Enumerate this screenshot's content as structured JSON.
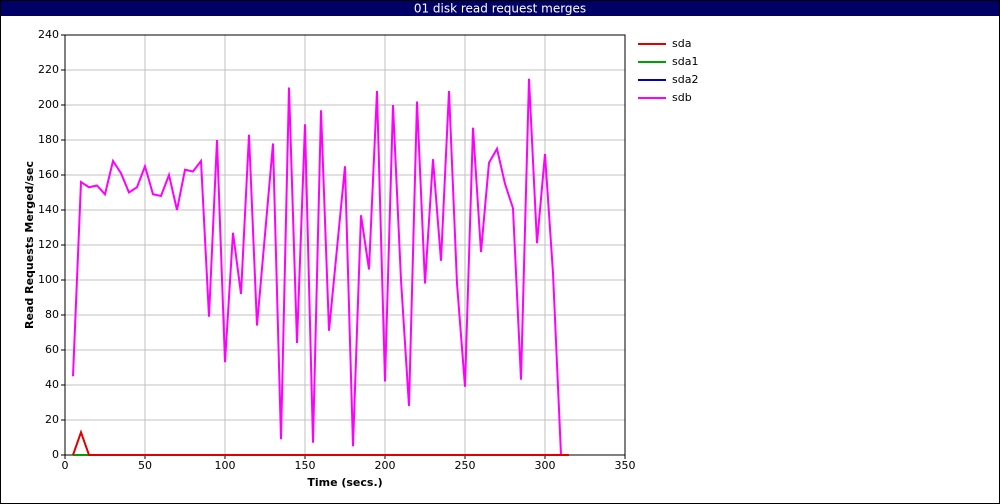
{
  "chart_data": {
    "type": "line",
    "title": "01 disk read request merges",
    "x_label": "Time (secs.)",
    "y_label": "Read Requests Merged/sec",
    "xlim": [
      0,
      350
    ],
    "xticks": [
      0,
      50,
      100,
      150,
      200,
      250,
      300,
      350
    ],
    "ylim": [
      0,
      240
    ],
    "yticks": [
      0,
      20,
      40,
      60,
      80,
      100,
      120,
      140,
      160,
      180,
      200,
      220,
      240
    ],
    "grid": true,
    "legend": "right",
    "x": [
      5,
      10,
      15,
      20,
      25,
      30,
      35,
      40,
      45,
      50,
      55,
      60,
      65,
      70,
      75,
      80,
      85,
      90,
      95,
      100,
      105,
      110,
      115,
      120,
      125,
      130,
      135,
      140,
      145,
      150,
      155,
      160,
      165,
      170,
      175,
      180,
      185,
      190,
      195,
      200,
      205,
      210,
      215,
      220,
      225,
      230,
      235,
      240,
      245,
      250,
      255,
      260,
      265,
      270,
      275,
      280,
      285,
      290,
      295,
      300,
      305,
      310,
      315
    ],
    "series": [
      {
        "name": "sda",
        "color": "#e00000",
        "values": [
          0,
          13,
          0,
          0,
          0,
          0,
          0,
          0,
          0,
          0,
          0,
          0,
          0,
          0,
          0,
          0,
          0,
          0,
          0,
          0,
          0,
          0,
          0,
          0,
          0,
          0,
          0,
          0,
          0,
          0,
          0,
          0,
          0,
          0,
          0,
          0,
          0,
          0,
          0,
          0,
          0,
          0,
          0,
          0,
          0,
          0,
          0,
          0,
          0,
          0,
          0,
          0,
          0,
          0,
          0,
          0,
          0,
          0,
          0,
          0,
          0,
          0,
          0
        ]
      },
      {
        "name": "sda1",
        "color": "#00a000",
        "values": [
          0,
          0,
          0,
          0,
          0,
          0,
          0,
          0,
          0,
          0,
          0,
          0,
          0,
          0,
          0,
          0,
          0,
          0,
          0,
          0,
          0,
          0,
          0,
          0,
          0,
          0,
          0,
          0,
          0,
          0,
          0,
          0,
          0,
          0,
          0,
          0,
          0,
          0,
          0,
          0,
          0,
          0,
          0,
          0,
          0,
          0,
          0,
          0,
          0,
          0,
          0,
          0,
          0,
          0,
          0,
          0,
          0,
          0,
          0,
          0,
          0,
          0,
          0
        ]
      },
      {
        "name": "sda2",
        "color": "#0000c0",
        "values": [
          0,
          0,
          0,
          0,
          0,
          0,
          0,
          0,
          0,
          0,
          0,
          0,
          0,
          0,
          0,
          0,
          0,
          0,
          0,
          0,
          0,
          0,
          0,
          0,
          0,
          0,
          0,
          0,
          0,
          0,
          0,
          0,
          0,
          0,
          0,
          0,
          0,
          0,
          0,
          0,
          0,
          0,
          0,
          0,
          0,
          0,
          0,
          0,
          0,
          0,
          0,
          0,
          0,
          0,
          0,
          0,
          0,
          0,
          0,
          0,
          0,
          0,
          0
        ]
      },
      {
        "name": "sdb",
        "color": "#ff00ff",
        "values": [
          45,
          156,
          153,
          154,
          149,
          168,
          161,
          150,
          153,
          165,
          149,
          148,
          160,
          140,
          163,
          162,
          168,
          79,
          180,
          53,
          127,
          92,
          183,
          74,
          126,
          178,
          9,
          210,
          64,
          189,
          7,
          197,
          71,
          118,
          165,
          5,
          137,
          106,
          208,
          42,
          200,
          100,
          28,
          202,
          98,
          169,
          111,
          208,
          98,
          39,
          187,
          116,
          167,
          175,
          155,
          141,
          43,
          215,
          121,
          172,
          104,
          0,
          null
        ]
      }
    ]
  }
}
